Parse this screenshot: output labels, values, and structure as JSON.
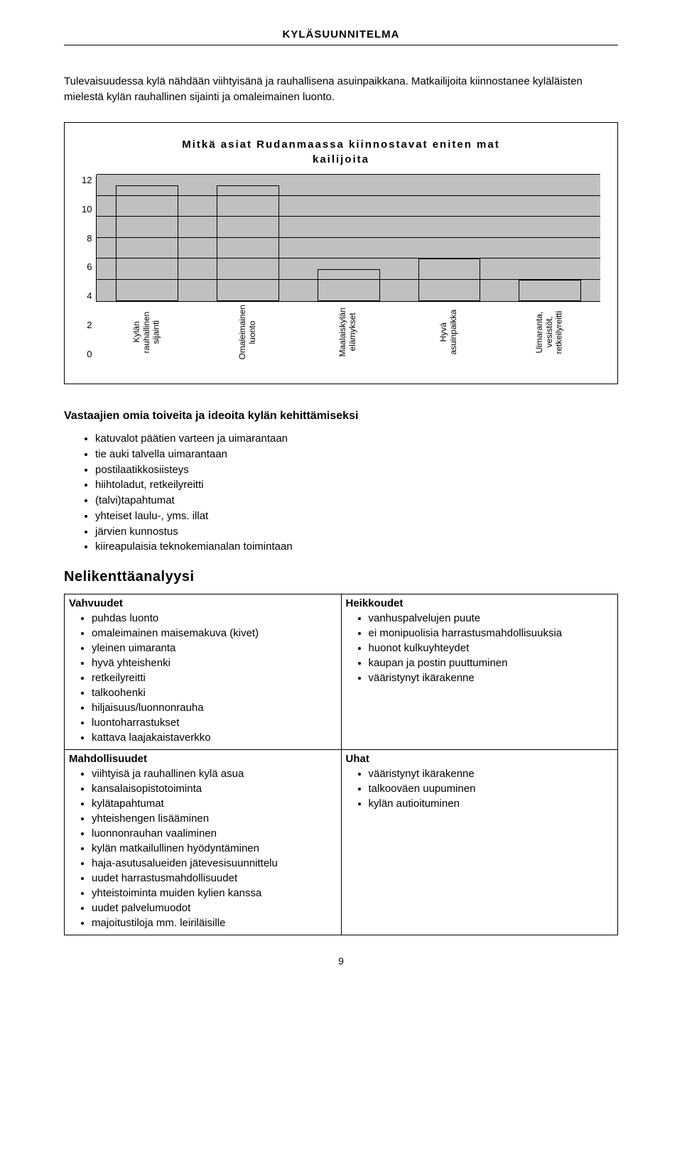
{
  "header": {
    "title": "KYLÄSUUNNITELMA"
  },
  "intro": "Tulevaisuudessa kylä nähdään viihtyisänä ja rauhallisena asuinpaikkana. Matkailijoita kiinnostanee kyläläisten mielestä kylän rauhallinen sijainti ja omaleimainen luonto.",
  "chart": {
    "type": "bar",
    "title_line1": "Mitkä asiat Rudanmaassa kiinnostavat eniten mat",
    "title_line2": "kailijoita",
    "ymax": 12,
    "ytick_step": 2,
    "yticks": [
      "12",
      "10",
      "8",
      "6",
      "4",
      "2",
      "0"
    ],
    "plot_bg": "#c0c0c0",
    "grid_color": "#000000",
    "bar_fill": "#c0c0c0",
    "bar_border": "#000000",
    "bar_width_pct": 62,
    "categories": [
      {
        "label_lines": [
          "Kylän",
          "rauhallinen",
          "sijainti"
        ],
        "value": 11
      },
      {
        "label_lines": [
          "Omaleimainen",
          "luonto"
        ],
        "value": 11
      },
      {
        "label_lines": [
          "Maalaiskylän",
          "elämykset"
        ],
        "value": 3
      },
      {
        "label_lines": [
          "Hyvä",
          "asuinpaikka"
        ],
        "value": 4
      },
      {
        "label_lines": [
          "Uimaranta,",
          "vesistöt,",
          "retkeilyreitti"
        ],
        "value": 2
      }
    ]
  },
  "ideas": {
    "heading": "Vastaajien omia toiveita ja ideoita kylän kehittämiseksi",
    "items": [
      "katuvalot päätien varteen ja uimarantaan",
      "tie auki talvella uimarantaan",
      "postilaatikkosiisteys",
      "hiihtoladut, retkeilyreitti",
      "(talvi)tapahtumat",
      "yhteiset laulu-, yms. illat",
      "järvien kunnostus",
      "kiireapulaisia teknokemianalan toimintaan"
    ]
  },
  "swot": {
    "heading": "Nelikenttäanalyysi",
    "strengths": {
      "title": "Vahvuudet",
      "items": [
        "puhdas luonto",
        "omaleimainen maisemakuva (kivet)",
        "yleinen uimaranta",
        "hyvä yhteishenki",
        "retkeilyreitti",
        "talkoohenki",
        "hiljaisuus/luonnonrauha",
        "luontoharrastukset",
        "kattava laajakaistaverkko"
      ]
    },
    "weaknesses": {
      "title": "Heikkoudet",
      "items": [
        "vanhuspalvelujen puute",
        "ei monipuolisia harrastusmahdollisuuksia",
        "huonot kulkuyhteydet",
        "kaupan ja postin puuttuminen",
        "vääristynyt ikärakenne"
      ]
    },
    "opportunities": {
      "title": "Mahdollisuudet",
      "items": [
        "viihtyisä ja rauhallinen kylä asua",
        "kansalaisopistotoiminta",
        "kylätapahtumat",
        "yhteishengen lisääminen",
        "luonnonrauhan vaaliminen",
        "kylän matkailullinen hyödyntäminen",
        "haja-asutusalueiden jätevesisuunnittelu",
        "uudet harrastusmahdollisuudet",
        "yhteistoiminta muiden kylien kanssa",
        "uudet palvelumuodot",
        "majoitustiloja mm. leiriläisille"
      ]
    },
    "threats": {
      "title": "Uhat",
      "items": [
        "vääristynyt ikärakenne",
        "talkooväen uupuminen",
        "kylän autioituminen"
      ]
    }
  },
  "page_number": "9"
}
